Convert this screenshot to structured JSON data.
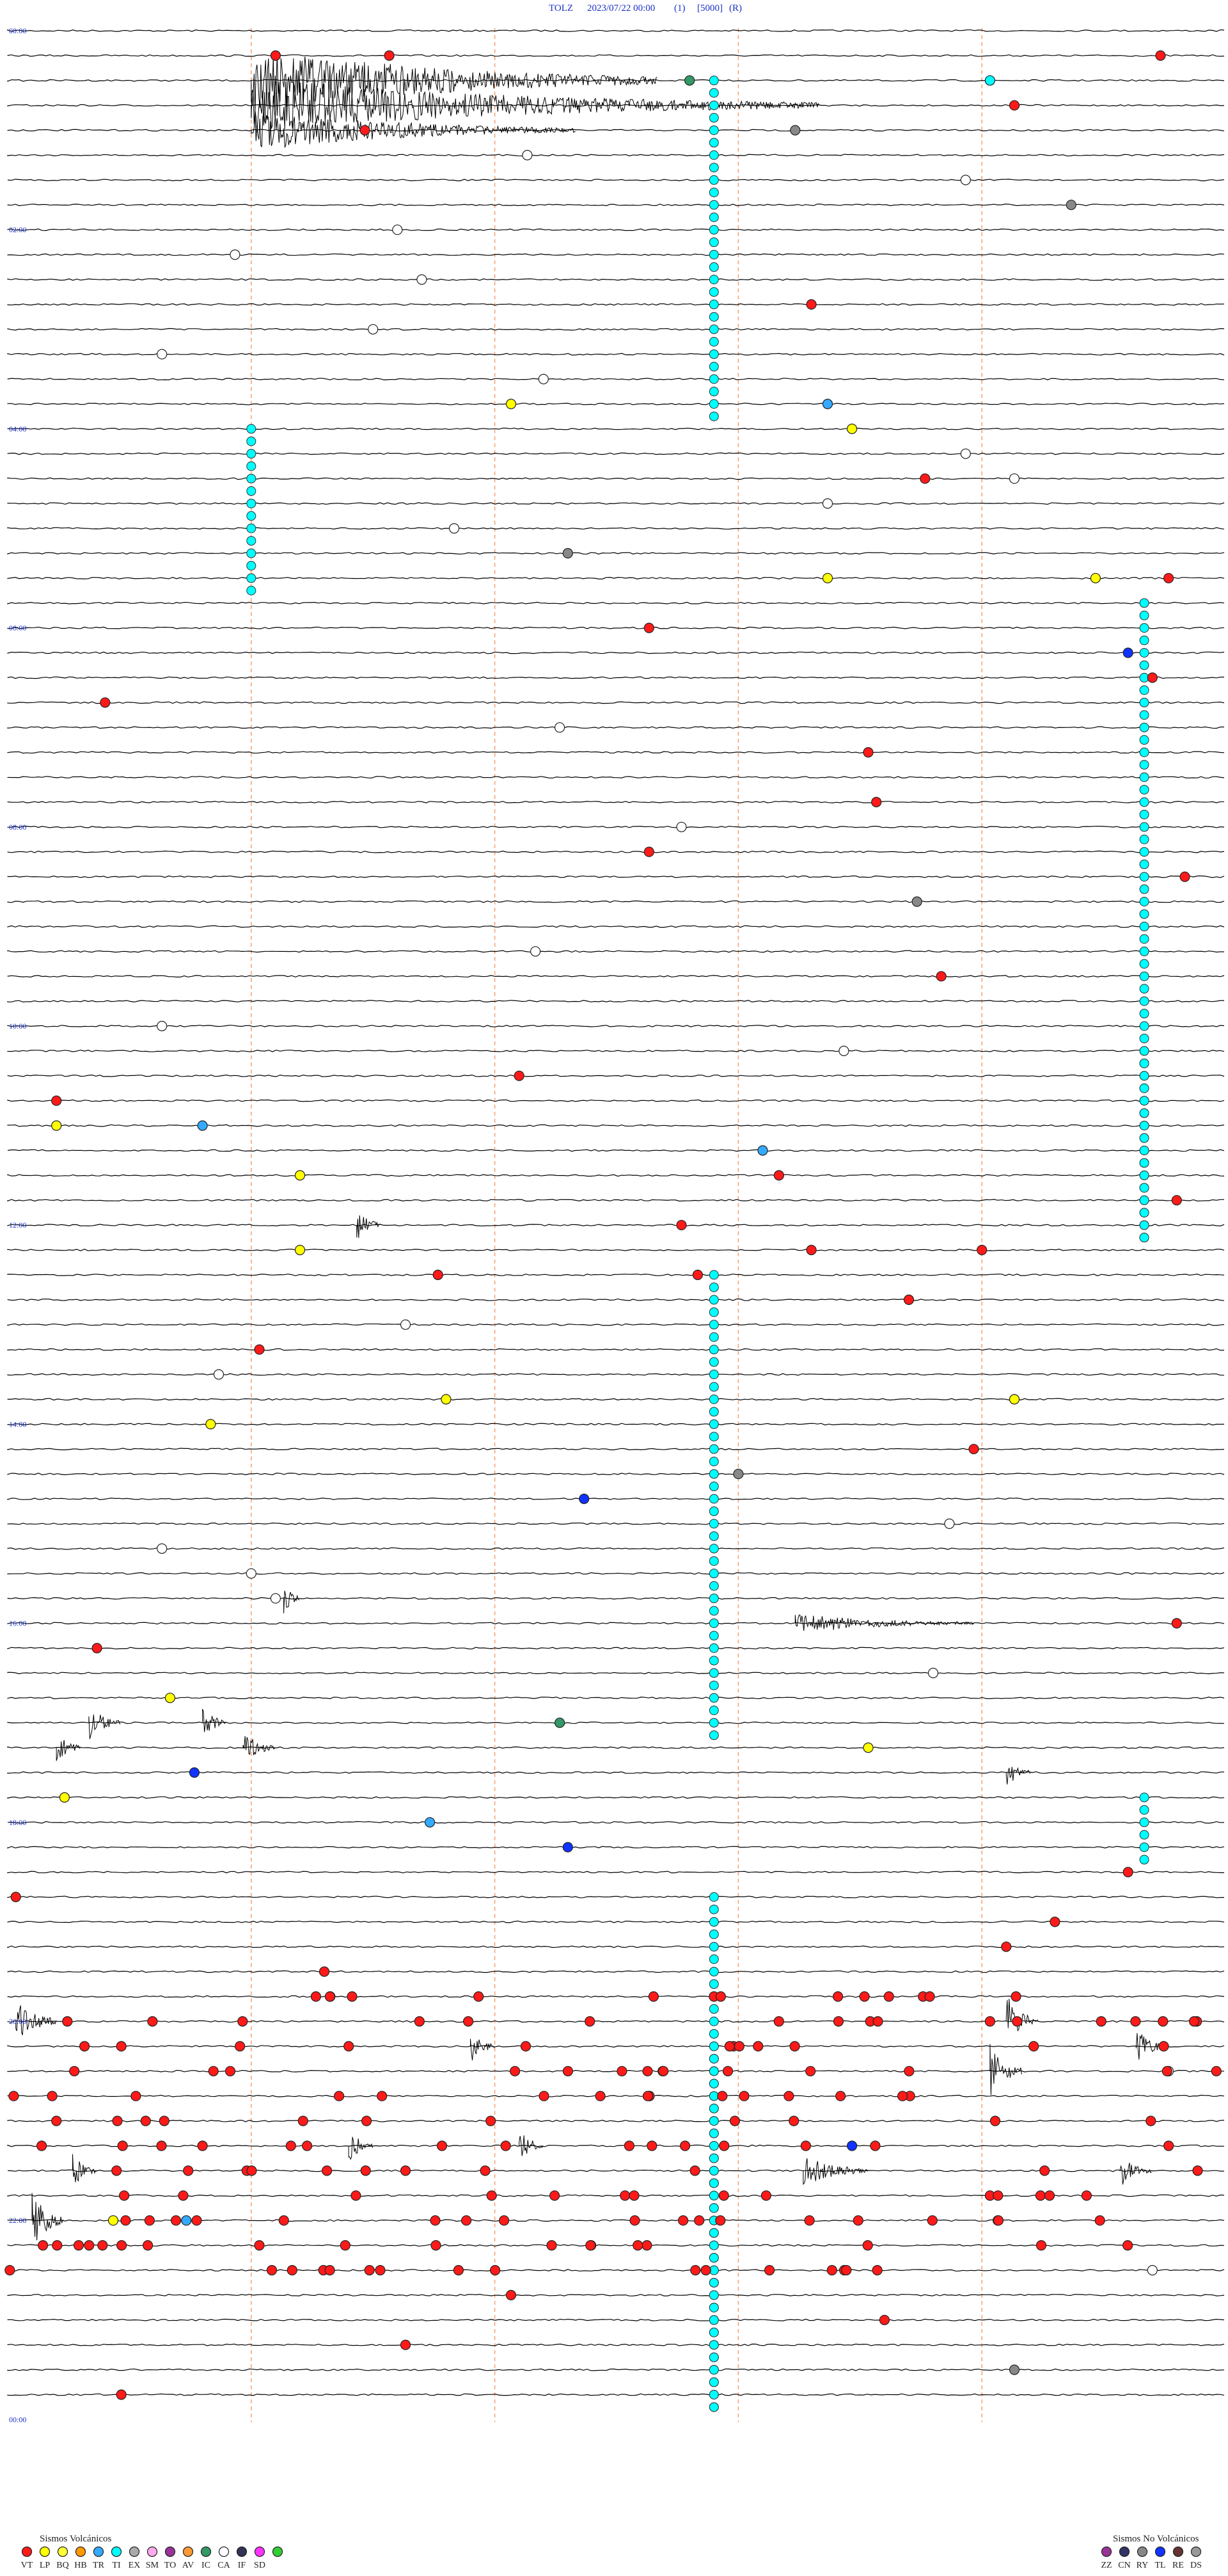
{
  "title": {
    "station": "TOLZ",
    "datetime": "2023/07/22 00:00",
    "channel": "(1)",
    "scale": "[5000]",
    "mode": "(R)"
  },
  "time_labels": [
    "00:00",
    "02:00",
    "04:00",
    "06:00",
    "08:00",
    "10:00",
    "12:00",
    "14:00",
    "16:00",
    "18:00",
    "20:00",
    "22:00",
    "00:00"
  ],
  "legend_volcanic": {
    "heading": "Sismos Volcánicos",
    "items": [
      {
        "code": "VT",
        "color": "#ff1a1a"
      },
      {
        "code": "LP",
        "color": "#ffff00"
      },
      {
        "code": "BQ",
        "color": "#ffff33"
      },
      {
        "code": "HB",
        "color": "#ff9900"
      },
      {
        "code": "TR",
        "color": "#33aaff"
      },
      {
        "code": "TI",
        "color": "#00ffff"
      },
      {
        "code": "EX",
        "color": "#aaaaaa"
      },
      {
        "code": "SM",
        "color": "#ffaaee"
      },
      {
        "code": "TO",
        "color": "#993399"
      },
      {
        "code": "AV",
        "color": "#ff9933"
      },
      {
        "code": "IC",
        "color": "#339966"
      },
      {
        "code": "CA",
        "color": "#ffffff"
      },
      {
        "code": "IF",
        "color": "#333355"
      },
      {
        "code": "SD",
        "color": "#ff33ff"
      },
      {
        "code": "",
        "color": "#33cc33"
      }
    ]
  },
  "legend_nonvolcanic": {
    "heading": "Sismos No Volcánicos",
    "items": [
      {
        "code": "ZZ",
        "color": "#993399"
      },
      {
        "code": "CN",
        "color": "#333366"
      },
      {
        "code": "RY",
        "color": "#888888"
      },
      {
        "code": "TL",
        "color": "#1133ff"
      },
      {
        "code": "RE",
        "color": "#663333"
      },
      {
        "code": "DS",
        "color": "#999999"
      }
    ]
  },
  "chart_data": {
    "type": "helicorder",
    "rows": 96,
    "minutes_per_row": 15,
    "start": "2023/07/22 00:00",
    "event_colors": {
      "VT": "#ff1a1a",
      "LP": "#ffff00",
      "TR": "#33aaff",
      "TI": "#00ffff",
      "IC": "#339966",
      "CA": "#ffffff",
      "RY": "#888888",
      "TL": "#1133ff"
    },
    "tremor_columns": [
      {
        "minute": 14,
        "row_start": 23,
        "row_end": 49
      },
      {
        "minute": 14,
        "row_start": 41,
        "row_end": 49
      },
      {
        "minute": 14,
        "row_start": 71,
        "row_end": 74
      },
      {
        "minute": 8.7,
        "row_start": 75,
        "row_end": 96
      },
      {
        "minute": 8.7,
        "row_start": 81,
        "row_end": 96
      },
      {
        "minute": 8.7,
        "row_start": 2,
        "row_end": 16
      },
      {
        "minute": 8.7,
        "row_start": 50,
        "row_end": 69
      },
      {
        "minute": 3,
        "row_start": 16,
        "row_end": 23
      }
    ],
    "events": [
      {
        "row": 1,
        "minute": 3.3,
        "type": "VT"
      },
      {
        "row": 1,
        "minute": 4.7,
        "type": "VT"
      },
      {
        "row": 1,
        "minute": 14.2,
        "type": "VT"
      },
      {
        "row": 2,
        "minute": 8.4,
        "type": "IC"
      },
      {
        "row": 2,
        "minute": 12.1,
        "type": "TI"
      },
      {
        "row": 3,
        "minute": 12.4,
        "type": "VT"
      },
      {
        "row": 4,
        "minute": 4.4,
        "type": "VT"
      },
      {
        "row": 4,
        "minute": 9.7,
        "type": "RY"
      },
      {
        "row": 5,
        "minute": 6.4,
        "type": "CA"
      },
      {
        "row": 6,
        "minute": 11.8,
        "type": "CA"
      },
      {
        "row": 7,
        "minute": 13.1,
        "type": "RY"
      },
      {
        "row": 8,
        "minute": 4.8,
        "type": "CA"
      },
      {
        "row": 9,
        "minute": 2.8,
        "type": "CA"
      },
      {
        "row": 10,
        "minute": 5.1,
        "type": "CA"
      },
      {
        "row": 11,
        "minute": 9.9,
        "type": "VT"
      },
      {
        "row": 12,
        "minute": 4.5,
        "type": "CA"
      },
      {
        "row": 13,
        "minute": 1.9,
        "type": "CA"
      },
      {
        "row": 14,
        "minute": 6.6,
        "type": "CA"
      },
      {
        "row": 15,
        "minute": 6.2,
        "type": "LP"
      },
      {
        "row": 15,
        "minute": 10.1,
        "type": "TR"
      },
      {
        "row": 16,
        "minute": 10.4,
        "type": "LP"
      },
      {
        "row": 17,
        "minute": 11.8,
        "type": "CA"
      },
      {
        "row": 18,
        "minute": 11.3,
        "type": "VT"
      },
      {
        "row": 18,
        "minute": 12.4,
        "type": "CA"
      },
      {
        "row": 19,
        "minute": 10.1,
        "type": "CA"
      },
      {
        "row": 20,
        "minute": 5.5,
        "type": "CA"
      },
      {
        "row": 21,
        "minute": 6.9,
        "type": "RY"
      },
      {
        "row": 22,
        "minute": 14.3,
        "type": "VT"
      },
      {
        "row": 22,
        "minute": 13.4,
        "type": "LP"
      },
      {
        "row": 22,
        "minute": 10.1,
        "type": "LP"
      },
      {
        "row": 24,
        "minute": 7.9,
        "type": "VT"
      },
      {
        "row": 25,
        "minute": 13.8,
        "type": "TL"
      },
      {
        "row": 26,
        "minute": 14.1,
        "type": "VT"
      },
      {
        "row": 27,
        "minute": 1.2,
        "type": "VT"
      },
      {
        "row": 28,
        "minute": 6.8,
        "type": "CA"
      },
      {
        "row": 29,
        "minute": 10.6,
        "type": "VT"
      },
      {
        "row": 31,
        "minute": 10.7,
        "type": "VT"
      },
      {
        "row": 32,
        "minute": 8.3,
        "type": "CA"
      },
      {
        "row": 33,
        "minute": 7.9,
        "type": "VT"
      },
      {
        "row": 34,
        "minute": 14.5,
        "type": "VT"
      },
      {
        "row": 35,
        "minute": 11.2,
        "type": "RY"
      },
      {
        "row": 37,
        "minute": 6.5,
        "type": "CA"
      },
      {
        "row": 38,
        "minute": 11.5,
        "type": "VT"
      },
      {
        "row": 40,
        "minute": 1.9,
        "type": "CA"
      },
      {
        "row": 41,
        "minute": 10.3,
        "type": "CA"
      },
      {
        "row": 42,
        "minute": 6.3,
        "type": "VT"
      },
      {
        "row": 43,
        "minute": 0.6,
        "type": "VT"
      },
      {
        "row": 44,
        "minute": 0.6,
        "type": "LP"
      },
      {
        "row": 44,
        "minute": 2.4,
        "type": "TR"
      },
      {
        "row": 45,
        "minute": 9.3,
        "type": "TR"
      },
      {
        "row": 46,
        "minute": 9.5,
        "type": "VT"
      },
      {
        "row": 46,
        "minute": 3.6,
        "type": "LP"
      },
      {
        "row": 47,
        "minute": 14.4,
        "type": "VT"
      },
      {
        "row": 48,
        "minute": 8.3,
        "type": "VT"
      },
      {
        "row": 49,
        "minute": 9.9,
        "type": "VT"
      },
      {
        "row": 49,
        "minute": 12.0,
        "type": "VT"
      },
      {
        "row": 49,
        "minute": 3.6,
        "type": "LP"
      },
      {
        "row": 50,
        "minute": 5.3,
        "type": "VT"
      },
      {
        "row": 50,
        "minute": 8.5,
        "type": "VT"
      },
      {
        "row": 51,
        "minute": 11.1,
        "type": "VT"
      },
      {
        "row": 52,
        "minute": 4.9,
        "type": "CA"
      },
      {
        "row": 53,
        "minute": 3.1,
        "type": "VT"
      },
      {
        "row": 54,
        "minute": 2.6,
        "type": "CA"
      },
      {
        "row": 55,
        "minute": 5.4,
        "type": "LP"
      },
      {
        "row": 55,
        "minute": 12.4,
        "type": "LP"
      },
      {
        "row": 56,
        "minute": 2.5,
        "type": "LP"
      },
      {
        "row": 57,
        "minute": 11.9,
        "type": "VT"
      },
      {
        "row": 58,
        "minute": 9.0,
        "type": "RY"
      },
      {
        "row": 59,
        "minute": 7.1,
        "type": "TL"
      },
      {
        "row": 60,
        "minute": 11.6,
        "type": "CA"
      },
      {
        "row": 61,
        "minute": 1.9,
        "type": "CA"
      },
      {
        "row": 62,
        "minute": 3.0,
        "type": "CA"
      },
      {
        "row": 63,
        "minute": 3.3,
        "type": "CA"
      },
      {
        "row": 64,
        "minute": 14.4,
        "type": "VT"
      },
      {
        "row": 65,
        "minute": 1.1,
        "type": "VT"
      },
      {
        "row": 66,
        "minute": 11.4,
        "type": "CA"
      },
      {
        "row": 67,
        "minute": 2.0,
        "type": "LP"
      },
      {
        "row": 68,
        "minute": 6.8,
        "type": "IC"
      },
      {
        "row": 69,
        "minute": 10.6,
        "type": "LP"
      },
      {
        "row": 70,
        "minute": 2.3,
        "type": "TL"
      },
      {
        "row": 71,
        "minute": 0.7,
        "type": "LP"
      },
      {
        "row": 72,
        "minute": 5.2,
        "type": "TR"
      },
      {
        "row": 73,
        "minute": 6.9,
        "type": "TL"
      },
      {
        "row": 74,
        "minute": 13.8,
        "type": "VT"
      },
      {
        "row": 75,
        "minute": 0.1,
        "type": "VT"
      },
      {
        "row": 76,
        "minute": 12.9,
        "type": "VT"
      },
      {
        "row": 77,
        "minute": 12.3,
        "type": "VT"
      },
      {
        "row": 78,
        "minute": 3.9,
        "type": "VT"
      },
      {
        "row": 79,
        "minute": 5.8,
        "type": "VT"
      },
      {
        "row": 79,
        "minute": 8.7,
        "type": "VT"
      },
      {
        "row": 80,
        "minute": 12.1,
        "type": "VT"
      },
      {
        "row": 81,
        "minute": 1.4,
        "type": "VT"
      },
      {
        "row": 82,
        "minute": 14.3,
        "type": "CA"
      },
      {
        "row": 83,
        "minute": 7.3,
        "type": "VT"
      },
      {
        "row": 84,
        "minute": 1.7,
        "type": "VT"
      },
      {
        "row": 85,
        "minute": 10.4,
        "type": "TL"
      },
      {
        "row": 86,
        "minute": 4.9,
        "type": "VT"
      },
      {
        "row": 87,
        "minute": 12.1,
        "type": "VT"
      },
      {
        "row": 88,
        "minute": 1.3,
        "type": "LP"
      },
      {
        "row": 88,
        "minute": 2.2,
        "type": "TR"
      },
      {
        "row": 89,
        "minute": 3.1,
        "type": "VT"
      },
      {
        "row": 90,
        "minute": 14.1,
        "type": "CA"
      },
      {
        "row": 91,
        "minute": 6.2,
        "type": "VT"
      },
      {
        "row": 92,
        "minute": 10.8,
        "type": "VT"
      },
      {
        "row": 93,
        "minute": 4.9,
        "type": "VT"
      },
      {
        "row": 94,
        "minute": 12.4,
        "type": "RY"
      },
      {
        "row": 95,
        "minute": 1.4,
        "type": "VT"
      }
    ],
    "dense_swarm": {
      "row_start": 79,
      "row_end": 91,
      "type": "VT"
    },
    "bursts": [
      {
        "row": 2,
        "minute_start": 3.0,
        "minute_end": 8.0,
        "amp": 1.0
      },
      {
        "row": 3,
        "minute_start": 3.0,
        "minute_end": 10.0,
        "amp": 0.8
      },
      {
        "row": 4,
        "minute_start": 3.0,
        "minute_end": 7.0,
        "amp": 0.6
      },
      {
        "row": 48,
        "minute_start": 4.3,
        "minute_end": 4.6,
        "amp": 0.5
      },
      {
        "row": 63,
        "minute_start": 3.4,
        "minute_end": 3.6,
        "amp": 0.5
      },
      {
        "row": 68,
        "minute_start": 1.0,
        "minute_end": 1.4,
        "amp": 0.5
      },
      {
        "row": 68,
        "minute_start": 2.4,
        "minute_end": 2.7,
        "amp": 0.5
      },
      {
        "row": 69,
        "minute_start": 0.6,
        "minute_end": 0.9,
        "amp": 0.5
      },
      {
        "row": 69,
        "minute_start": 2.9,
        "minute_end": 3.3,
        "amp": 0.5
      },
      {
        "row": 64,
        "minute_start": 9.7,
        "minute_end": 11.9,
        "amp": 0.3
      },
      {
        "row": 70,
        "minute_start": 12.3,
        "minute_end": 12.6,
        "amp": 0.5
      },
      {
        "row": 80,
        "minute_start": 0.1,
        "minute_end": 0.6,
        "amp": 0.7
      },
      {
        "row": 81,
        "minute_start": 5.7,
        "minute_end": 6.0,
        "amp": 0.5
      },
      {
        "row": 80,
        "minute_start": 12.3,
        "minute_end": 12.7,
        "amp": 0.8
      },
      {
        "row": 82,
        "minute_start": 12.1,
        "minute_end": 12.5,
        "amp": 0.8
      },
      {
        "row": 81,
        "minute_start": 13.9,
        "minute_end": 14.3,
        "amp": 0.5
      },
      {
        "row": 85,
        "minute_start": 4.2,
        "minute_end": 4.5,
        "amp": 0.5
      },
      {
        "row": 85,
        "minute_start": 6.3,
        "minute_end": 6.6,
        "amp": 0.5
      },
      {
        "row": 86,
        "minute_start": 0.8,
        "minute_end": 1.1,
        "amp": 0.5
      },
      {
        "row": 86,
        "minute_start": 9.8,
        "minute_end": 10.6,
        "amp": 0.5
      },
      {
        "row": 86,
        "minute_start": 13.7,
        "minute_end": 14.1,
        "amp": 0.5
      },
      {
        "row": 88,
        "minute_start": 0.3,
        "minute_end": 0.7,
        "amp": 0.8
      }
    ]
  }
}
